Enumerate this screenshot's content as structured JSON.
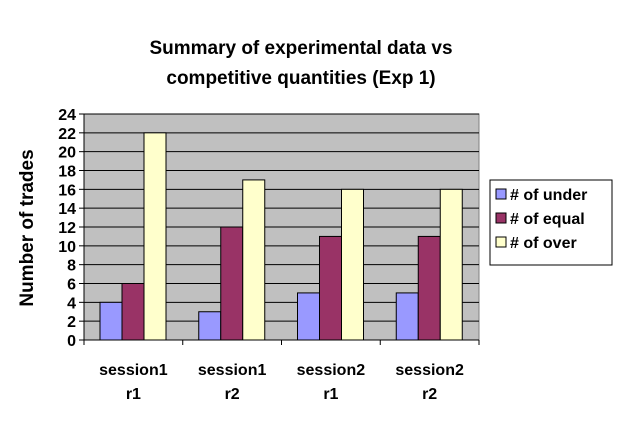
{
  "chart_data": {
    "type": "bar",
    "title": [
      "Summary of experimental data vs",
      "competitive quantities (Exp 1)"
    ],
    "xlabel": "",
    "ylabel": "Number of trades",
    "ylim": [
      0,
      24
    ],
    "ytick_step": 2,
    "grid": true,
    "legend_position": "right",
    "categories": [
      [
        "session1",
        "r1"
      ],
      [
        "session1",
        "r2"
      ],
      [
        "session2",
        "r1"
      ],
      [
        "session2",
        "r2"
      ]
    ],
    "series": [
      {
        "name": "# of under",
        "color": "#9999ff",
        "values": [
          4,
          3,
          5,
          5
        ]
      },
      {
        "name": "# of equal",
        "color": "#993366",
        "values": [
          6,
          12,
          11,
          11
        ]
      },
      {
        "name": "# of over",
        "color": "#ffffcc",
        "values": [
          22,
          17,
          16,
          16
        ]
      }
    ],
    "plot_bg": "#c0c0c0"
  }
}
